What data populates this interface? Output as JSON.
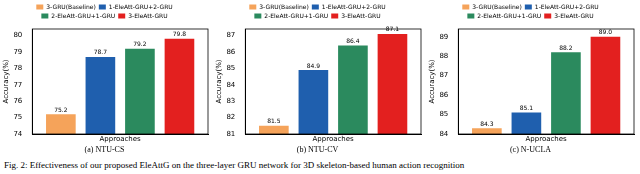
{
  "chart_data": [
    {
      "type": "bar",
      "title": "(a) NTU-CS",
      "x_label": "Approaches",
      "y_label": "Accuracy(%)",
      "series": [
        {
          "name": "3-GRU(Baseline)",
          "color": "#f5a35a",
          "values": [
            75.2
          ]
        },
        {
          "name": "1-EleAtt-GRU+2-GRU",
          "color": "#1f5fae",
          "values": [
            78.7
          ]
        },
        {
          "name": "2-EleAtt-GRU+1-GRU",
          "color": "#2b8a5e",
          "values": [
            79.2
          ]
        },
        {
          "name": "3-EleAtt-GRU",
          "color": "#e3201f",
          "values": [
            79.8
          ]
        }
      ],
      "ylim": [
        74,
        80.4
      ],
      "yticks": [
        74,
        75,
        76,
        77,
        78,
        79,
        80
      ],
      "grid": false,
      "legend": "top",
      "data_labels": true,
      "tick_labels": "y"
    },
    {
      "type": "bar",
      "title": "(b) NTU-CV",
      "x_label": "Approaches",
      "y_label": "Accuracy(%)",
      "series": [
        {
          "name": "3-GRU(Baseline)",
          "color": "#f5a35a",
          "values": [
            81.5
          ]
        },
        {
          "name": "1-EleAtt-GRU+2-GRU",
          "color": "#1f5fae",
          "values": [
            84.9
          ]
        },
        {
          "name": "2-EleAtt-GRU+1-GRU",
          "color": "#2b8a5e",
          "values": [
            86.4
          ]
        },
        {
          "name": "3-EleAtt-GRU",
          "color": "#e3201f",
          "values": [
            87.1
          ]
        }
      ],
      "ylim": [
        81,
        87.4
      ],
      "yticks": [
        81,
        82,
        83,
        84,
        85,
        86,
        87
      ],
      "grid": false,
      "legend": "top",
      "data_labels": true,
      "tick_labels": "y"
    },
    {
      "type": "bar",
      "title": "(c) N-UCLA",
      "x_label": "Approaches",
      "y_label": "Accuracy(%)",
      "series": [
        {
          "name": "3-GRU(Baseline)",
          "color": "#f5a35a",
          "values": [
            84.3
          ]
        },
        {
          "name": "1-EleAtt-GRU+2-GRU",
          "color": "#1f5fae",
          "values": [
            85.1
          ]
        },
        {
          "name": "2-EleAtt-GRU+1-GRU",
          "color": "#2b8a5e",
          "values": [
            88.2
          ]
        },
        {
          "name": "3-EleAtt-GRU",
          "color": "#e3201f",
          "values": [
            89.0
          ],
          "value_labels": [
            "89.0"
          ]
        }
      ],
      "ylim": [
        84,
        89.4
      ],
      "yticks": [
        84,
        85,
        86,
        87,
        88,
        89
      ],
      "grid": false,
      "legend": "top",
      "data_labels": true,
      "tick_labels": "y"
    }
  ],
  "caption": "Fig. 2: Effectiveness of our proposed EleAttG on the three-layer GRU network for 3D skeleton-based human action recognition"
}
